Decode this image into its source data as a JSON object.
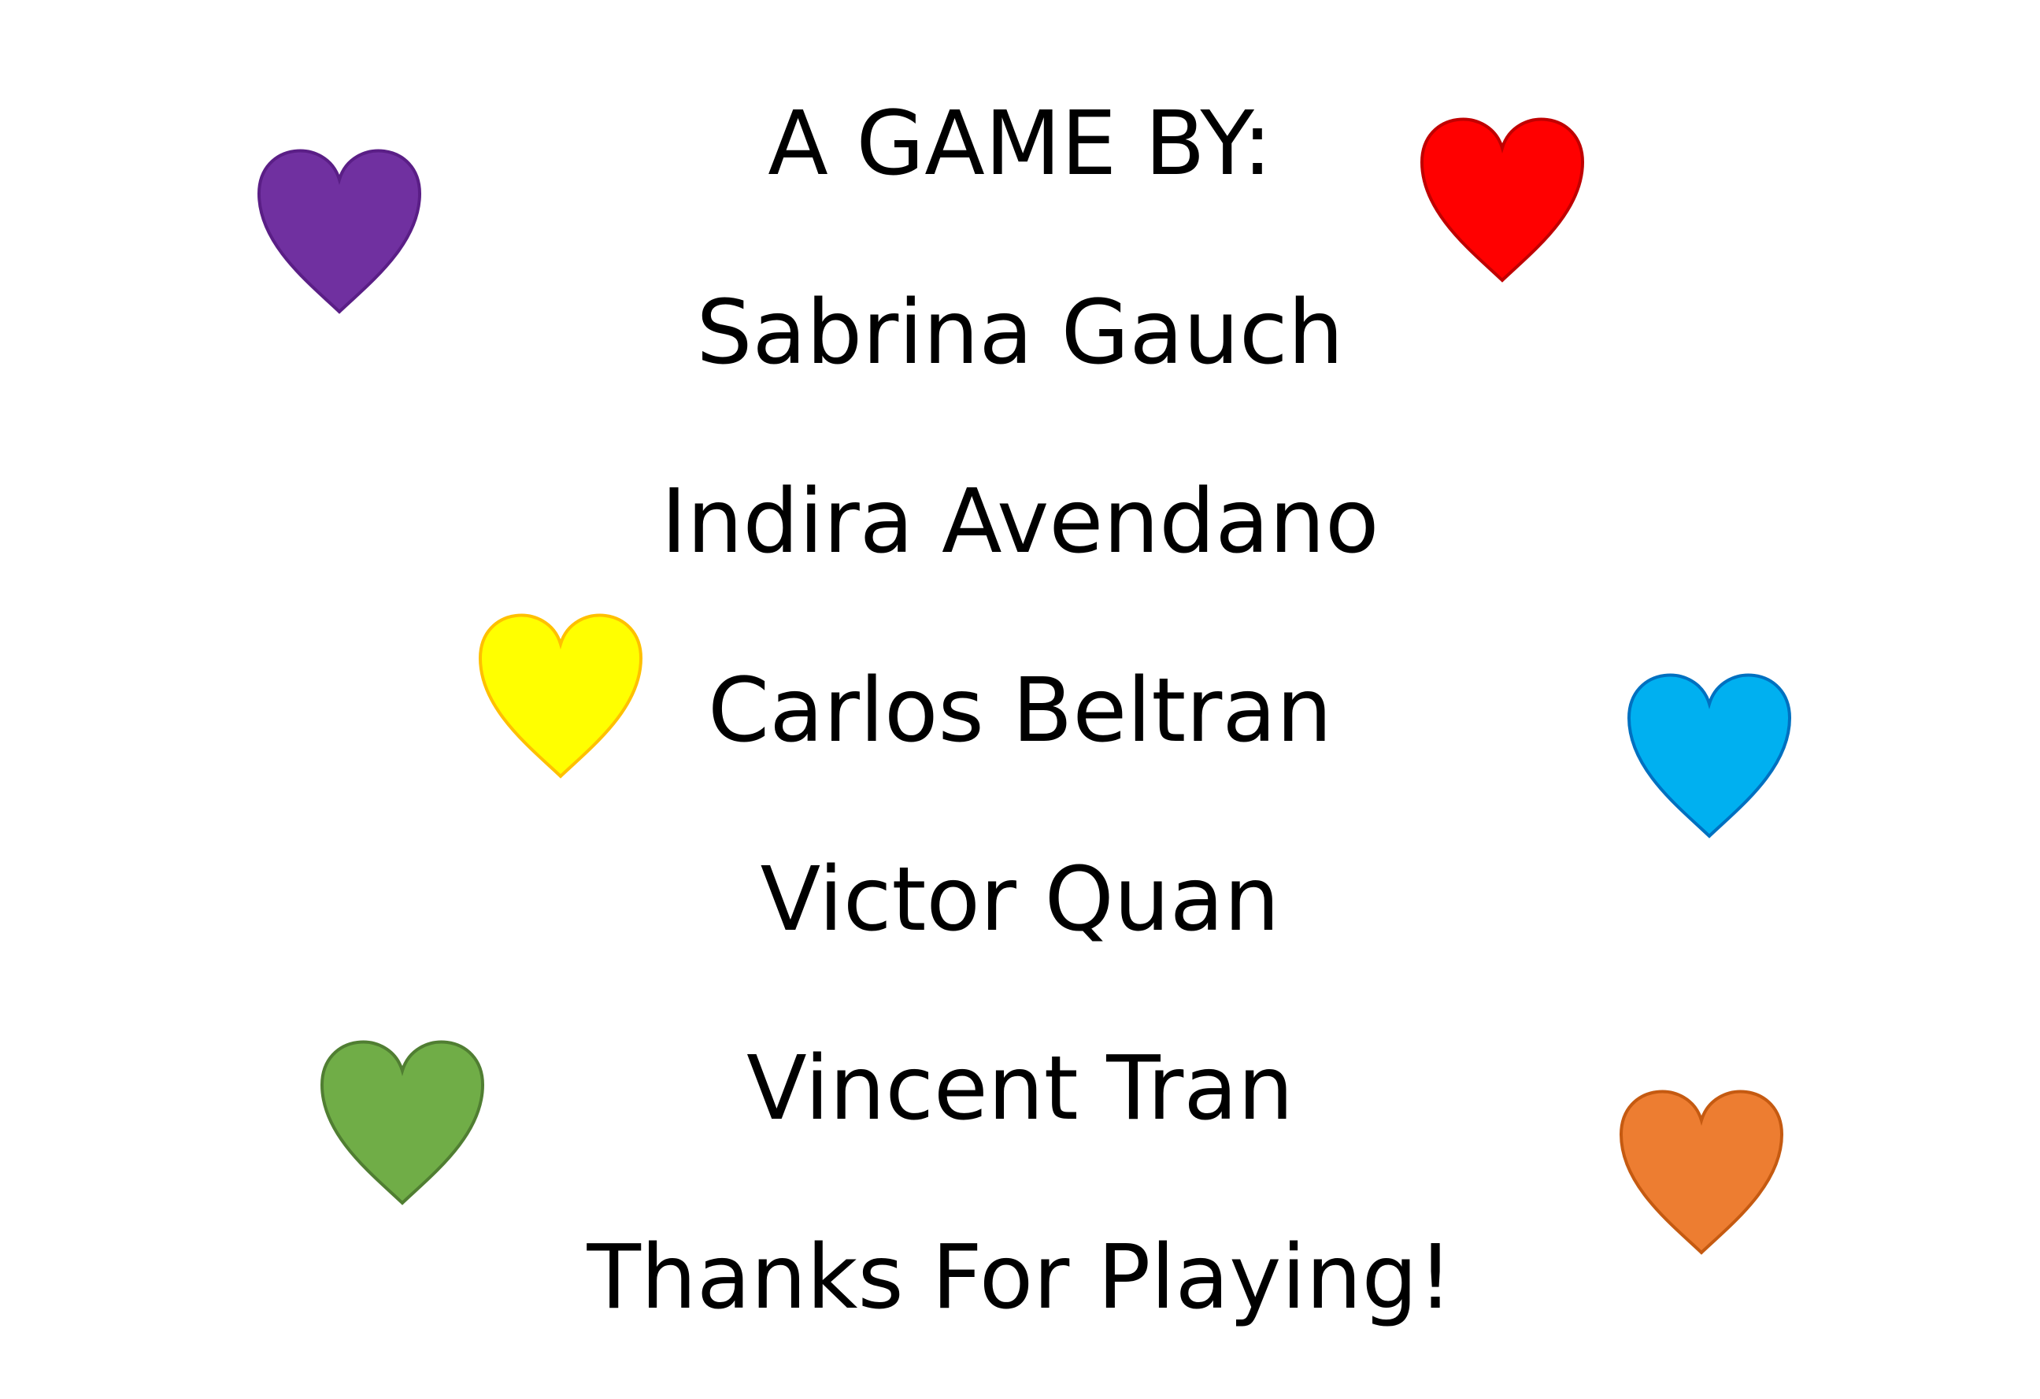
{
  "credits": {
    "heading": "A GAME BY:",
    "names": [
      "Sabrina Gauch",
      "Indira Avendano",
      "Carlos Beltran",
      "Victor Quan",
      "Vincent Tran"
    ],
    "closing": "Thanks For Playing!"
  },
  "hearts": [
    {
      "name": "purple-heart-icon",
      "fill": "#7030A0",
      "stroke": "#5A1E86"
    },
    {
      "name": "red-heart-icon",
      "fill": "#FF0000",
      "stroke": "#C00000"
    },
    {
      "name": "yellow-heart-icon",
      "fill": "#FFFF00",
      "stroke": "#FFC000"
    },
    {
      "name": "blue-heart-icon",
      "fill": "#00B0F0",
      "stroke": "#0070C0"
    },
    {
      "name": "green-heart-icon",
      "fill": "#70AD47",
      "stroke": "#507E32"
    },
    {
      "name": "orange-heart-icon",
      "fill": "#ED7D31",
      "stroke": "#C55A11"
    }
  ]
}
